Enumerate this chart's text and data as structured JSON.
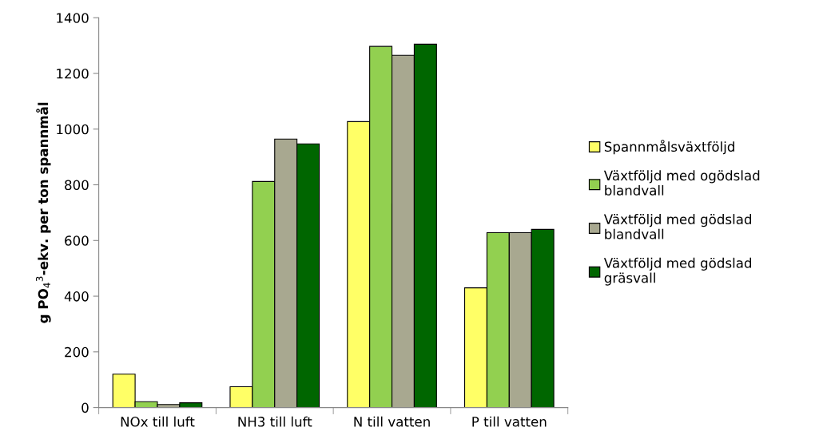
{
  "chart_data": {
    "type": "bar",
    "ylabel": "g PO$_{4}$$^{3}$-ekv. per ton spannmål",
    "categories": [
      "NOx till luft",
      "NH3 till luft",
      "N till vatten",
      "P till vatten"
    ],
    "series": [
      {
        "name": "Spannmålsväxtföljd",
        "color": "#ffff66",
        "values": [
          120,
          75,
          1027,
          430
        ]
      },
      {
        "name": "Växtföljd med ogödslad\nblandvall",
        "color": "#92d050",
        "values": [
          21,
          812,
          1297,
          628
        ]
      },
      {
        "name": "Växtföljd med gödslad\nblandvall",
        "color": "#a8a890",
        "values": [
          11,
          964,
          1265,
          628
        ]
      },
      {
        "name": "Växtföljd med gödslad\ngräsvall",
        "color": "#006600",
        "values": [
          17,
          947,
          1305,
          640
        ]
      }
    ],
    "ylim": [
      0,
      1400
    ],
    "yticks": [
      0,
      200,
      400,
      600,
      800,
      1000,
      1200,
      1400
    ],
    "grid": false,
    "legend": "right"
  }
}
